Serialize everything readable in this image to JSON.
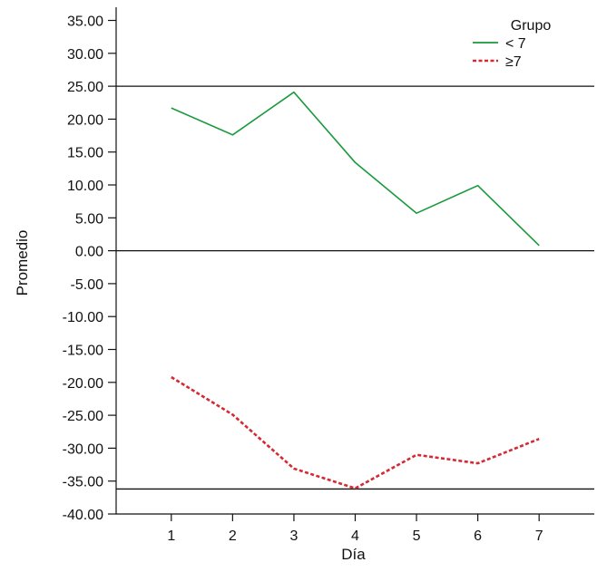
{
  "chart_data": {
    "type": "line",
    "title": "",
    "xlabel": "Día",
    "ylabel": "Promedio",
    "categories": [
      "1",
      "2",
      "3",
      "4",
      "5",
      "6",
      "7"
    ],
    "xlim": [
      0.1,
      7.9
    ],
    "ylim": [
      -40,
      37
    ],
    "y_ticks": [
      "35.00",
      "30.00",
      "25.00",
      "20.00",
      "15.00",
      "10.00",
      "5.00",
      "0.00",
      "-5.00",
      "-10.00",
      "-15.00",
      "-20.00",
      "-25.00",
      "-30.00",
      "-35.00",
      "-40.00"
    ],
    "reference_lines": [
      25,
      0,
      -36.2
    ],
    "grid": false,
    "legend": {
      "title": "Grupo",
      "position": "top-right",
      "entries": [
        "< 7",
        "≥7"
      ]
    },
    "series": [
      {
        "name": "< 7",
        "color": "#1a9a3c",
        "dash": "solid",
        "values": [
          21.7,
          17.6,
          24.1,
          13.4,
          5.7,
          9.9,
          0.8
        ]
      },
      {
        "name": "≥7",
        "color": "#d42a33",
        "dash": "dotted",
        "values": [
          -19.2,
          -24.9,
          -33.1,
          -36.1,
          -31.0,
          -32.3,
          -28.6
        ]
      }
    ]
  }
}
